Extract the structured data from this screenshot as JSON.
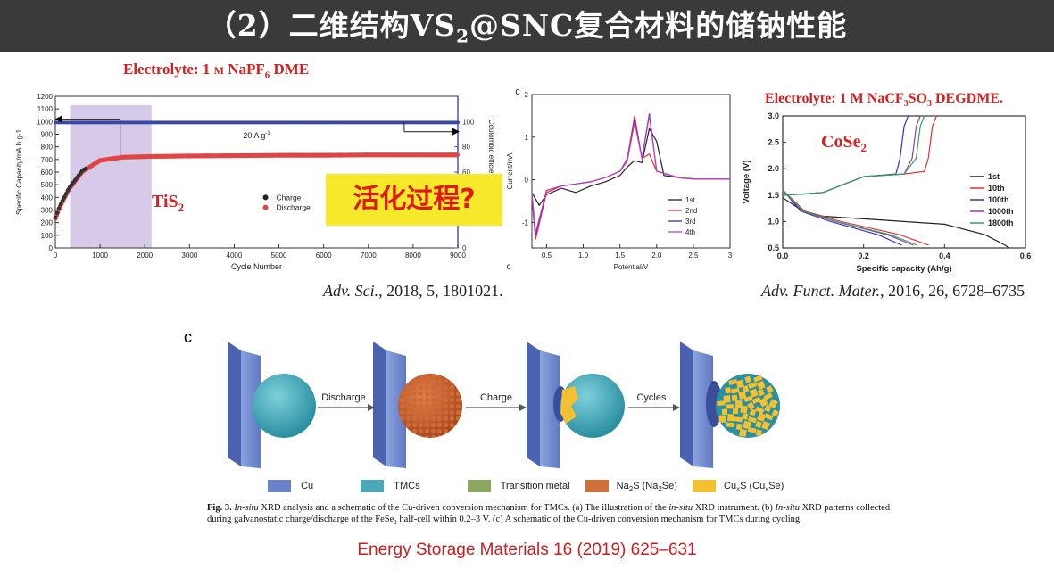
{
  "title": {
    "prefix": "（2）二维结构VS",
    "sub": "2",
    "suffix": "@SNC复合材料的储钠性能"
  },
  "left_panel": {
    "electrolyte": {
      "prefix": "Electrolyte: 1 ",
      "m": "M",
      "mid": " NaPF",
      "sub": "6",
      "suffix": " DME"
    },
    "material": {
      "main": "TiS",
      "sub": "2"
    },
    "callout": "活化过程?",
    "rate": "20 A g",
    "rate_sup": "-1",
    "legend": [
      "Charge",
      "Discharge"
    ],
    "citation": {
      "journal": "Adv. Sci.",
      "rest": ", 2018, 5, 1801021."
    }
  },
  "cv_panel": {
    "letter": "c",
    "citation_letter": "c",
    "legend": [
      "1st",
      "2nd",
      "3rd",
      "4th"
    ]
  },
  "right_panel": {
    "electrolyte": {
      "prefix": "Electrolyte: 1 M NaCF",
      "sub1": "3",
      "mid": "SO",
      "sub2": "3",
      "suffix": "  DEGDME."
    },
    "material": {
      "main": "CoSe",
      "sub": "2"
    },
    "legend": [
      "1st",
      "10th",
      "100th",
      "1000th",
      "1800th"
    ],
    "citation": {
      "journal": "Adv. Funct. Mater.",
      "rest": ", 2016, 26, 6728–6735"
    }
  },
  "schematic": {
    "letter": "c",
    "arrows": [
      "Discharge",
      "Charge",
      "Cycles"
    ],
    "legend": [
      {
        "label": "Cu",
        "color": "#6a82c8"
      },
      {
        "label": "TMCs",
        "color": "#4aa8b8"
      },
      {
        "label": "Transition metal",
        "color": "#8aa860"
      },
      {
        "label_main": "Na",
        "label_sub": "2",
        "label_rest": "S (Na",
        "label_sub2": "2",
        "label_end": "Se)",
        "color": "#d0703a"
      },
      {
        "label_main": "Cu",
        "label_sub": "x",
        "label_rest": "S (Cu",
        "label_sub2": "x",
        "label_end": "Se)",
        "color": "#f2c030"
      }
    ],
    "caption_line1": {
      "a": "Fig. 3. ",
      "b": "In-situ",
      "c": " XRD analysis and a schematic of the Cu-driven conversion mechanism for TMCs. (a) The illustration of the ",
      "d": "in-situ",
      "e": " XRD instrument. (b) ",
      "f": "In-situ",
      "g": " XRD patterns collected"
    },
    "caption_line2": {
      "a": "during galvanostatic charge/discharge of the FeSe",
      "sub": "2",
      "b": " half-cell within 0.2–3 V. (c) A schematic of the Cu-driven conversion mechanism for TMCs during cycling."
    },
    "citation": "Energy Storage Materials 16 (2019) 625–631"
  },
  "chart_data": [
    {
      "type": "scatter",
      "xlabel": "Cycle Number",
      "ylabel": "Specific Capacity/mA.h.g-1",
      "y2label": "Coulombic efficiency/%",
      "xlim": [
        0,
        9000
      ],
      "ylim": [
        0,
        1200
      ],
      "y2lim": [
        0,
        120
      ],
      "xticks": [
        "0",
        "1000",
        "2000",
        "3000",
        "4000",
        "5000",
        "6000",
        "7000",
        "8000",
        "9000"
      ],
      "yticks": [
        "0",
        "100",
        "200",
        "300",
        "400",
        "500",
        "600",
        "700",
        "800",
        "900",
        "1000",
        "1100",
        "1200"
      ],
      "y2ticks": [
        "0",
        "20",
        "40",
        "60",
        "80",
        "100"
      ],
      "highlight_range": [
        330,
        2150
      ],
      "series": [
        {
          "name": "Charge",
          "x": [
            0,
            100,
            300,
            600,
            1000,
            1500,
            2000,
            3000,
            4000,
            5000,
            6000,
            7000,
            8000,
            9000
          ],
          "y": [
            240,
            330,
            470,
            610,
            700,
            725,
            730,
            735,
            740,
            740,
            742,
            745,
            745,
            745
          ]
        },
        {
          "name": "Discharge",
          "x": [
            0,
            100,
            300,
            600,
            1000,
            1500,
            2000,
            3000,
            4000,
            5000,
            6000,
            7000,
            8000,
            9000
          ],
          "y": [
            245,
            335,
            475,
            615,
            705,
            730,
            735,
            740,
            742,
            745,
            745,
            748,
            748,
            748
          ]
        },
        {
          "x": [
            0,
            1000,
            2000,
            3000,
            4000,
            5000,
            6000,
            7000,
            8000,
            9000
          ],
          "y": [
            100,
            100,
            100,
            100,
            100,
            100,
            100,
            100,
            100,
            100
          ]
        }
      ]
    },
    {
      "type": "line",
      "xlabel": "Potential/V",
      "ylabel": "Current/mA",
      "xlim": [
        0.3,
        3
      ],
      "ylim": [
        -1.6,
        2
      ],
      "xticks": [
        "0.5",
        "1.0",
        "1.5",
        "2.0",
        "2.5",
        "3"
      ],
      "yticks": [
        "-1",
        "0",
        "1",
        "2"
      ],
      "series": [
        {
          "name": "1st",
          "x": [
            0.3,
            0.4,
            0.5,
            0.7,
            0.9,
            1.1,
            1.3,
            1.5,
            1.6,
            1.7,
            1.8,
            1.9,
            2.0,
            2.1,
            2.3,
            2.5,
            3.0
          ],
          "y": [
            -0.3,
            -0.6,
            -0.35,
            -0.2,
            -0.3,
            -0.15,
            -0.05,
            0.1,
            0.3,
            0.45,
            0.4,
            1.2,
            0.9,
            0.1,
            0.05,
            0.02,
            0.02
          ]
        },
        {
          "name": "2nd",
          "x": [
            0.3,
            0.35,
            0.5,
            0.7,
            0.9,
            1.1,
            1.3,
            1.5,
            1.6,
            1.7,
            1.8,
            1.9,
            2.0,
            2.3,
            2.5,
            3.0
          ],
          "y": [
            -0.4,
            -1.4,
            -0.3,
            -0.15,
            -0.1,
            -0.05,
            0.05,
            0.2,
            0.5,
            1.5,
            0.5,
            0.6,
            0.2,
            0.05,
            0.02,
            0.02
          ]
        },
        {
          "name": "3rd",
          "x": [
            0.3,
            0.35,
            0.5,
            0.7,
            0.9,
            1.1,
            1.3,
            1.5,
            1.6,
            1.7,
            1.8,
            1.9,
            2.0,
            2.3,
            2.5,
            3.0
          ],
          "y": [
            -0.35,
            -1.3,
            -0.25,
            -0.15,
            -0.1,
            -0.05,
            0.05,
            0.2,
            0.45,
            1.4,
            0.5,
            1.55,
            0.2,
            0.05,
            0.02,
            0.02
          ]
        },
        {
          "name": "4th",
          "x": [
            0.3,
            0.35,
            0.5,
            0.7,
            0.9,
            1.1,
            1.3,
            1.5,
            1.6,
            1.7,
            1.8,
            1.9,
            2.0,
            2.3,
            2.5,
            3.0
          ],
          "y": [
            -0.3,
            -1.25,
            -0.25,
            -0.15,
            -0.1,
            -0.05,
            0.05,
            0.2,
            0.45,
            1.35,
            0.5,
            1.5,
            0.2,
            0.05,
            0.02,
            0.02
          ]
        }
      ]
    },
    {
      "type": "line",
      "xlabel": "Specific capacity (Ah/g)",
      "ylabel": "Voltage (V)",
      "xlim": [
        0,
        0.6
      ],
      "ylim": [
        0.5,
        3.0
      ],
      "xticks": [
        "0.0",
        "0.2",
        "0.4",
        "0.6"
      ],
      "yticks": [
        "0.5",
        "1.0",
        "1.5",
        "2.0",
        "2.5",
        "3.0"
      ],
      "series": [
        {
          "name": "1st",
          "color": "#222222",
          "x": [
            0,
            0.05,
            0.1,
            0.2,
            0.3,
            0.4,
            0.5,
            0.55,
            0.56
          ],
          "y": [
            1.45,
            1.2,
            1.1,
            1.05,
            1.0,
            0.95,
            0.75,
            0.55,
            0.5
          ]
        },
        {
          "name": "10th",
          "color": "#e03030",
          "x": [
            0,
            0.05,
            0.1,
            0.2,
            0.3,
            0.35,
            0.36,
            0.37,
            0.38
          ],
          "y": [
            1.5,
            1.52,
            1.55,
            1.85,
            1.9,
            1.95,
            2.2,
            2.8,
            3.0
          ]
        },
        {
          "name": "100th",
          "color": "#3030c0",
          "x": [
            0,
            0.05,
            0.1,
            0.2,
            0.28,
            0.29,
            0.3,
            0.31
          ],
          "y": [
            1.5,
            1.52,
            1.55,
            1.85,
            1.9,
            2.2,
            2.8,
            3.0
          ]
        },
        {
          "name": "1000th",
          "color": "#9040a0",
          "x": [
            0,
            0.05,
            0.1,
            0.2,
            0.3,
            0.32,
            0.33,
            0.34
          ],
          "y": [
            1.5,
            1.52,
            1.55,
            1.85,
            1.9,
            2.2,
            2.8,
            3.0
          ]
        },
        {
          "name": "1800th",
          "color": "#30a060",
          "x": [
            0,
            0.05,
            0.1,
            0.2,
            0.3,
            0.33,
            0.34,
            0.35
          ],
          "y": [
            1.5,
            1.52,
            1.55,
            1.85,
            1.9,
            2.2,
            2.8,
            3.0
          ]
        }
      ]
    }
  ]
}
